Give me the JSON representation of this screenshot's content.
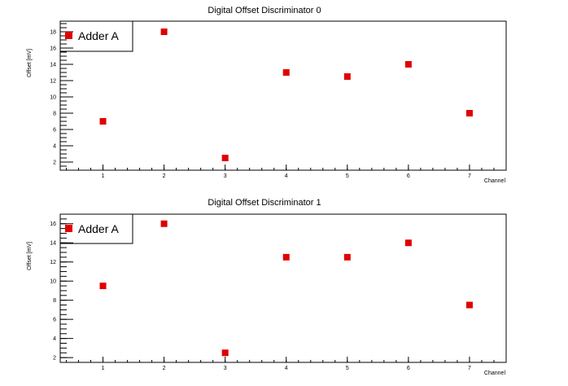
{
  "chart_data": [
    {
      "type": "scatter",
      "title": "Digital Offset  Discriminator 0",
      "xlabel": "Channel",
      "ylabel": "Offset [mV]",
      "xlim": [
        0.3,
        7.6
      ],
      "ylim": [
        1,
        19.3
      ],
      "x_ticks": [
        1,
        2,
        3,
        4,
        5,
        6,
        7
      ],
      "y_ticks": [
        2,
        4,
        6,
        8,
        10,
        12,
        14,
        16,
        18
      ],
      "marker_color": "#e00000",
      "series": [
        {
          "name": "Adder A",
          "x": [
            1,
            2,
            3,
            4,
            5,
            6,
            7
          ],
          "y": [
            7,
            18,
            2.5,
            13,
            12.5,
            14,
            8
          ]
        }
      ]
    },
    {
      "type": "scatter",
      "title": "Digital Offset  Discriminator 1",
      "xlabel": "Channel",
      "ylabel": "Offset [mV]",
      "xlim": [
        0.3,
        7.6
      ],
      "ylim": [
        1.5,
        17
      ],
      "x_ticks": [
        1,
        2,
        3,
        4,
        5,
        6,
        7
      ],
      "y_ticks": [
        2,
        4,
        6,
        8,
        10,
        12,
        14,
        16
      ],
      "marker_color": "#e00000",
      "series": [
        {
          "name": "Adder A",
          "x": [
            1,
            2,
            3,
            4,
            5,
            6,
            7
          ],
          "y": [
            9.5,
            16,
            2.5,
            12.5,
            12.5,
            14,
            7.5
          ]
        }
      ]
    }
  ]
}
